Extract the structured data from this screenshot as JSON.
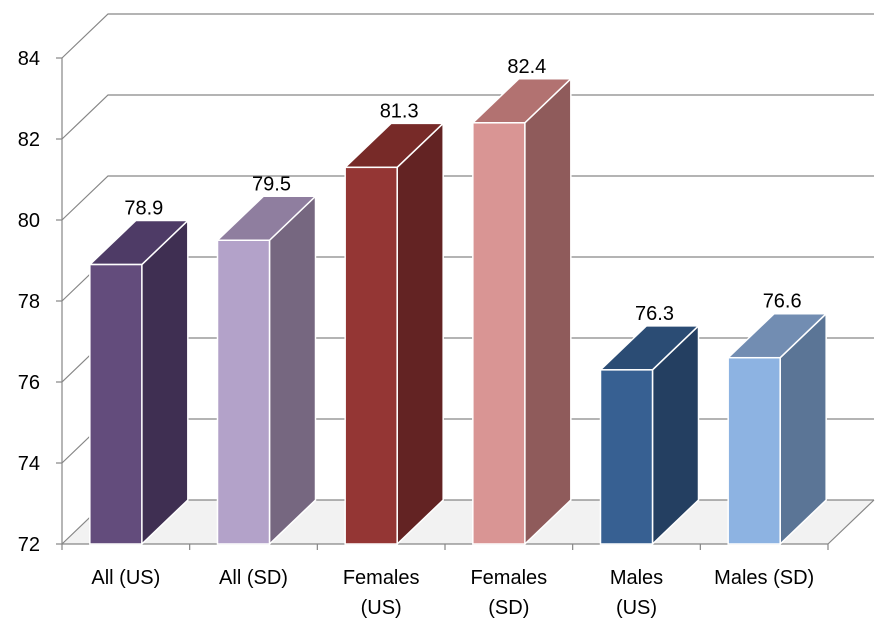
{
  "chart_data": {
    "type": "bar",
    "style": "3d-column",
    "categories": [
      [
        "All (US)"
      ],
      [
        "All (SD)"
      ],
      [
        "Females",
        "(US)"
      ],
      [
        "Females",
        "(SD)"
      ],
      [
        "Males",
        "(US)"
      ],
      [
        "Males (SD)"
      ]
    ],
    "values": [
      78.9,
      79.5,
      81.3,
      82.4,
      76.3,
      76.6
    ],
    "value_labels": [
      "78.9",
      "79.5",
      "81.3",
      "82.4",
      "76.3",
      "76.6"
    ],
    "ylim": [
      72,
      84
    ],
    "y_ticks": [
      "72",
      "74",
      "76",
      "78",
      "80",
      "82",
      "84"
    ],
    "grid": true,
    "legend": "none",
    "colors": [
      {
        "front": "#634C7C",
        "side": "#3F2F52",
        "top": "#4E3B66"
      },
      {
        "front": "#B3A2C9",
        "side": "#766780",
        "top": "#8F7E9F"
      },
      {
        "front": "#943634",
        "side": "#632323",
        "top": "#772A28"
      },
      {
        "front": "#D99594",
        "side": "#8F5B5B",
        "top": "#B27271"
      },
      {
        "front": "#376092",
        "side": "#243F61",
        "top": "#2B4C74"
      },
      {
        "front": "#8DB3E2",
        "side": "#5B7596",
        "top": "#728DB2"
      }
    ]
  }
}
